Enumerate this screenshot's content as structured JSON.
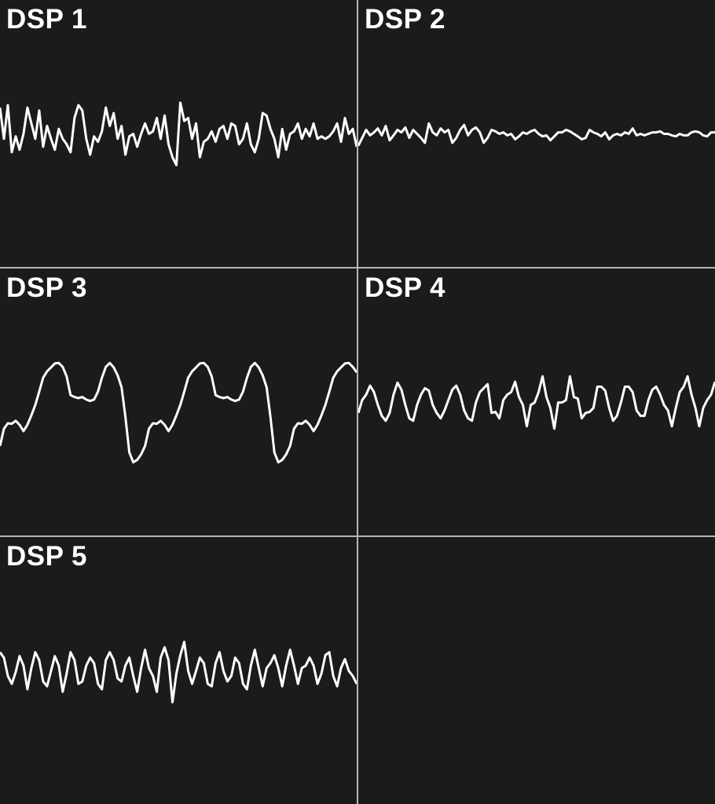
{
  "chart_data": [
    {
      "type": "line",
      "title": "DSP 1",
      "ylim": [
        -2.7,
        2.7
      ],
      "xlim": [
        0,
        91
      ],
      "color": "#ffffff",
      "background": "#1b1b1b",
      "values": [
        0.53,
        -0.1,
        0.58,
        -0.37,
        -0.05,
        -0.32,
        0,
        0.53,
        0.21,
        -0.1,
        0.47,
        -0.26,
        0.16,
        -0.1,
        -0.32,
        0.1,
        -0.1,
        -0.21,
        -0.37,
        0.32,
        0.58,
        0.47,
        -0.1,
        -0.42,
        -0.05,
        -0.16,
        0.05,
        0.53,
        0.16,
        0.42,
        -0.1,
        0.16,
        -0.42,
        -0.05,
        0,
        -0.26,
        0,
        0.21,
        0,
        0.05,
        0.32,
        -0.1,
        0.37,
        -0.21,
        -0.47,
        -0.63,
        0.63,
        0.26,
        0.32,
        -0.1,
        0.21,
        -0.47,
        -0.16,
        -0.1,
        0.05,
        -0.16,
        0.1,
        0.16,
        -0.1,
        0.21,
        0.16,
        -0.21,
        -0.1,
        0.21,
        -0.21,
        -0.37,
        -0.1,
        0.42,
        0.37,
        0.1,
        -0.1,
        -0.47,
        0.1,
        -0.32,
        0,
        0.05,
        0.21,
        -0.1,
        0.1,
        -0.05,
        0.21,
        -0.1,
        -0.05,
        -0.1,
        -0.05,
        0.05,
        0.21,
        -0.16,
        0.32,
        0,
        0.1,
        -0.26
      ]
    },
    {
      "type": "line",
      "title": "DSP 2",
      "ylim": [
        -2.7,
        2.7
      ],
      "xlim": [
        0,
        91
      ],
      "color": "#ffffff",
      "background": "#1b1b1b",
      "values": [
        -0.24,
        -0.08,
        0.08,
        -0.03,
        0.03,
        0.11,
        -0.03,
        0.16,
        -0.13,
        -0.03,
        0.08,
        0.03,
        0.13,
        -0.08,
        0.08,
        0,
        -0.08,
        -0.18,
        0.21,
        0.03,
        -0.03,
        0.11,
        0.03,
        0.08,
        -0.18,
        -0.08,
        0.08,
        0.18,
        -0.03,
        0.08,
        0.13,
        0.03,
        -0.18,
        -0.08,
        0.08,
        0.05,
        0,
        0.03,
        -0.03,
        0,
        -0.11,
        -0.05,
        0.03,
        0,
        0.05,
        0.08,
        0,
        -0.05,
        -0.03,
        -0.13,
        -0.05,
        0.03,
        0.03,
        0.08,
        0.05,
        0,
        -0.05,
        -0.11,
        -0.08,
        0.08,
        0.03,
        0,
        -0.05,
        0.03,
        -0.11,
        -0.03,
        0,
        -0.03,
        0.03,
        0,
        0.11,
        -0.03,
        0,
        -0.03,
        0,
        0.03,
        0.03,
        0.05,
        0,
        0,
        -0.03,
        -0.05,
        0,
        -0.03,
        -0.03,
        0.03,
        0.05,
        0.03,
        -0.03,
        -0.05,
        0.03,
        0.03
      ]
    },
    {
      "type": "line",
      "title": "DSP 3",
      "ylim": [
        -2.7,
        2.7
      ],
      "xlim": [
        0,
        91
      ],
      "color": "#ffffff",
      "background": "#1b1b1b",
      "values": [
        -0.89,
        -0.54,
        -0.43,
        -0.44,
        -0.38,
        -0.46,
        -0.59,
        -0.46,
        -0.27,
        -0.06,
        0.21,
        0.49,
        0.62,
        0.7,
        0.78,
        0.79,
        0.71,
        0.52,
        0.14,
        0.1,
        0.08,
        0.1,
        0.05,
        0.02,
        0.05,
        0.21,
        0.49,
        0.71,
        0.79,
        0.7,
        0.54,
        0.3,
        -0.3,
        -1.02,
        -1.22,
        -1.17,
        -1.06,
        -0.89,
        -0.54,
        -0.43,
        -0.44,
        -0.38,
        -0.46,
        -0.59,
        -0.46,
        -0.27,
        -0.06,
        0.21,
        0.49,
        0.62,
        0.7,
        0.78,
        0.79,
        0.71,
        0.52,
        0.14,
        0.1,
        0.08,
        0.1,
        0.05,
        0.02,
        0.05,
        0.21,
        0.49,
        0.71,
        0.79,
        0.7,
        0.54,
        0.3,
        -0.3,
        -1.02,
        -1.22,
        -1.17,
        -1.06,
        -0.89,
        -0.54,
        -0.43,
        -0.44,
        -0.38,
        -0.46,
        -0.59,
        -0.46,
        -0.27,
        -0.06,
        0.21,
        0.49,
        0.62,
        0.7,
        0.78,
        0.79,
        0.71,
        0.6
      ]
    },
    {
      "type": "line",
      "title": "DSP 4",
      "ylim": [
        -2.7,
        2.7
      ],
      "xlim": [
        0,
        91
      ],
      "color": "#ffffff",
      "background": "#1b1b1b",
      "values": [
        -0.22,
        0.04,
        0.15,
        0.33,
        0.2,
        -0.06,
        -0.28,
        -0.38,
        -0.22,
        0.15,
        0.39,
        0.25,
        -0.06,
        -0.33,
        -0.38,
        -0.06,
        0.15,
        0.28,
        0.23,
        -0.06,
        -0.22,
        -0.33,
        -0.17,
        0.04,
        0.25,
        0.33,
        0.15,
        -0.17,
        -0.33,
        -0.38,
        -0.01,
        0.2,
        0.28,
        0.36,
        -0.22,
        -0.2,
        -0.33,
        0.04,
        0.15,
        0.2,
        0.41,
        0.1,
        -0.06,
        -0.49,
        -0.06,
        -0.01,
        0.2,
        0.52,
        0.1,
        -0.12,
        -0.54,
        -0.01,
        -0.01,
        0.04,
        0.52,
        0.1,
        0.07,
        -0.33,
        -0.22,
        -0.2,
        -0.12,
        0.31,
        0.31,
        0.23,
        -0.12,
        -0.38,
        -0.28,
        -0.01,
        0.31,
        0.31,
        0.2,
        -0.17,
        -0.28,
        -0.28,
        0.04,
        0.25,
        0.31,
        0.15,
        -0.06,
        -0.17,
        -0.49,
        -0.12,
        0.2,
        0.31,
        0.52,
        0.15,
        -0.12,
        -0.49,
        -0.12,
        0.04,
        0.15,
        0.41
      ]
    },
    {
      "type": "line",
      "title": "DSP 5",
      "ylim": [
        -2.7,
        2.7
      ],
      "xlim": [
        0,
        91
      ],
      "color": "#ffffff",
      "background": "#1b1b1b",
      "values": [
        0.37,
        0.26,
        -0.11,
        -0.27,
        -0.03,
        0.29,
        0.1,
        -0.38,
        0.05,
        0.37,
        0.21,
        -0.22,
        -0.32,
        -0.01,
        0.29,
        0.1,
        -0.43,
        -0.06,
        0.37,
        0.21,
        -0.27,
        -0.22,
        0.1,
        0.26,
        0.15,
        -0.27,
        -0.38,
        0.21,
        0.37,
        0.21,
        -0.16,
        -0.22,
        0.1,
        0.26,
        -0.11,
        -0.43,
        0.05,
        0.42,
        0.05,
        -0.11,
        -0.43,
        0.26,
        0.47,
        0.21,
        -0.64,
        -0.06,
        0.31,
        0.58,
        -0.01,
        -0.27,
        -0.01,
        0.26,
        0.15,
        -0.27,
        -0.32,
        0.15,
        0.37,
        -0.01,
        -0.22,
        -0.11,
        0.26,
        0.15,
        -0.27,
        -0.38,
        0.1,
        0.42,
        0.05,
        -0.32,
        0.05,
        0.15,
        0.31,
        0.05,
        -0.32,
        0.1,
        0.42,
        0.1,
        -0.27,
        0.05,
        0.1,
        0.26,
        0.1,
        -0.27,
        -0.06,
        0.31,
        0.37,
        -0.11,
        -0.32,
        0.05,
        0.23,
        -0.01,
        -0.11,
        -0.27
      ]
    }
  ]
}
